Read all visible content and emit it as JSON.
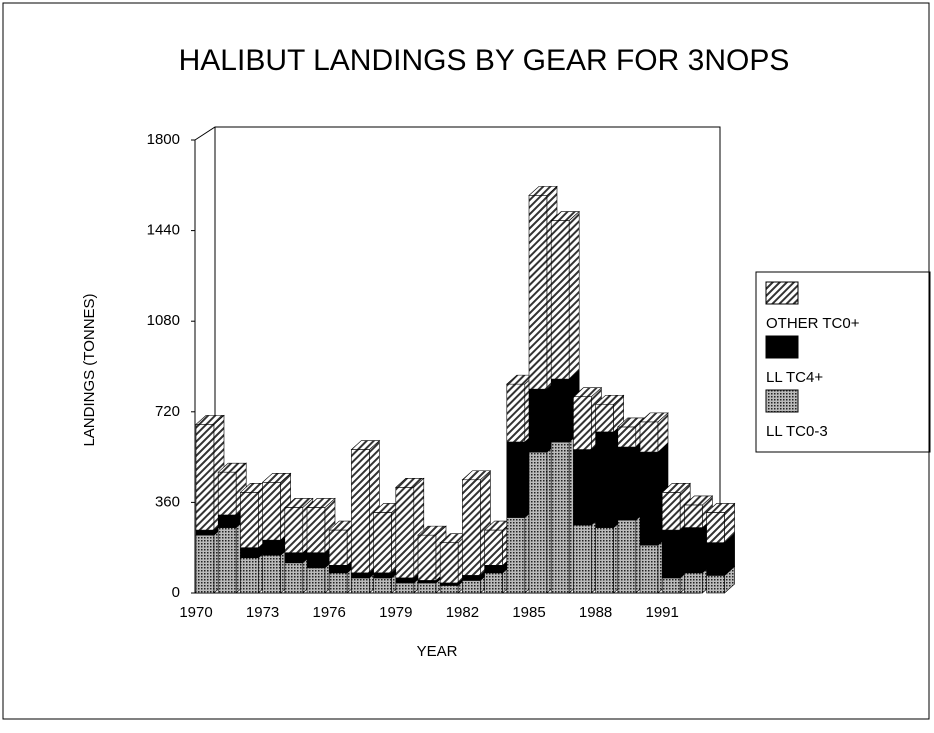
{
  "chart_data": {
    "type": "bar3d_stacked",
    "title": "HALIBUT LANDINGS BY GEAR FOR 3NOPS",
    "x_label": "YEAR",
    "y_label": "LANDINGS (TONNES)",
    "categories": [
      1970,
      null,
      null,
      1973,
      null,
      null,
      1976,
      null,
      null,
      1979,
      null,
      null,
      1982,
      null,
      null,
      1985,
      null,
      null,
      1988,
      null,
      null,
      1991,
      null,
      null
    ],
    "series": [
      {
        "name": "LL TC0-3",
        "color": "#8a8a8a",
        "hatch": "dots",
        "values": [
          230,
          260,
          140,
          150,
          120,
          100,
          80,
          60,
          60,
          40,
          40,
          30,
          50,
          80,
          300,
          560,
          600,
          270,
          260,
          290,
          190,
          60,
          80,
          70
        ]
      },
      {
        "name": "LL TC4+",
        "color": "#000000",
        "hatch": "none",
        "values": [
          20,
          50,
          40,
          60,
          40,
          60,
          30,
          20,
          20,
          20,
          10,
          10,
          20,
          30,
          300,
          250,
          250,
          300,
          380,
          290,
          370,
          190,
          180,
          130
        ]
      },
      {
        "name": "OTHER TC0+",
        "color": "#b0b0b0",
        "hatch": "diagonal",
        "values": [
          420,
          170,
          220,
          230,
          180,
          180,
          140,
          490,
          240,
          360,
          180,
          160,
          380,
          140,
          230,
          770,
          630,
          210,
          110,
          80,
          120,
          150,
          90,
          120
        ]
      }
    ],
    "legend_order": [
      2,
      1,
      0
    ],
    "ylim": [
      0,
      1800
    ],
    "yticks": [
      0,
      360,
      720,
      1080,
      1440,
      1800
    ],
    "grid": false
  }
}
